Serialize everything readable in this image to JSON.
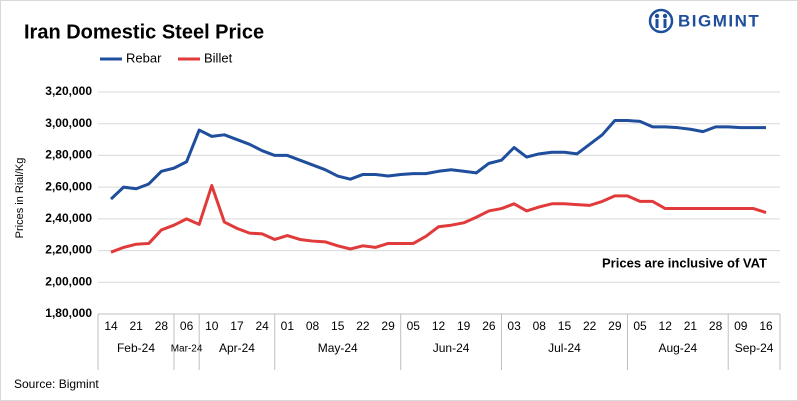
{
  "chart_data": {
    "type": "line",
    "title": "Iran Domestic Steel Price",
    "y_label": "Prices in Rial/Kg",
    "annotation": "Prices are inclusive  of VAT",
    "source": "Source: Bigmint",
    "brand": "BIGMINT",
    "categories": [
      "14",
      null,
      "21",
      null,
      "28",
      null,
      "06",
      null,
      "10",
      null,
      "17",
      null,
      "24",
      null,
      "01",
      null,
      "08",
      null,
      "15",
      null,
      "22",
      null,
      "29",
      null,
      "05",
      null,
      "12",
      null,
      "19",
      null,
      "26",
      null,
      "03",
      null,
      "08",
      null,
      "15",
      null,
      "22",
      null,
      "29",
      null,
      "05",
      null,
      "12",
      null,
      "21",
      null,
      "28",
      null,
      "09",
      null,
      "16"
    ],
    "x_groups": [
      "Feb-24",
      "Mar-24",
      "Apr-24",
      "May-24",
      "Jun-24",
      "Jul-24",
      "Aug-24",
      "Sep-24"
    ],
    "series": [
      {
        "name": "Rebar",
        "color": "#1f4e9c",
        "values": [
          252500,
          260000,
          259000,
          262000,
          270000,
          272000,
          276000,
          296000,
          292000,
          293000,
          290000,
          287000,
          283000,
          280000,
          280000,
          277000,
          274000,
          271000,
          267000,
          265000,
          268000,
          268000,
          267000,
          268000,
          268500,
          268500,
          270000,
          271000,
          270000,
          269000,
          275000,
          277000,
          285000,
          279000,
          281000,
          282000,
          282000,
          281000,
          287000,
          293000,
          302000,
          302000,
          301500,
          298000,
          298000,
          297500,
          296500,
          295000,
          298000,
          298000,
          297500,
          297500,
          297500
        ]
      },
      {
        "name": "Billet",
        "color": "#e03a3a",
        "values": [
          219000,
          222000,
          224000,
          224500,
          233000,
          236000,
          240000,
          236500,
          261000,
          238000,
          234000,
          231000,
          230500,
          227000,
          229500,
          227000,
          226000,
          225500,
          223000,
          221000,
          223000,
          222000,
          224500,
          224500,
          224500,
          229000,
          235000,
          236000,
          237500,
          241000,
          245000,
          246500,
          249500,
          245000,
          247500,
          249500,
          249500,
          249000,
          248500,
          251000,
          254500,
          254500,
          251000,
          251000,
          246500,
          246500,
          246500,
          246500,
          246500,
          246500,
          246500,
          246500,
          244000
        ]
      }
    ],
    "ylim": [
      180000,
      320000
    ],
    "yticks": [
      {
        "value": 180000,
        "label": "1,80,000"
      },
      {
        "value": 200000,
        "label": "2,00,000"
      },
      {
        "value": 220000,
        "label": "2,20,000"
      },
      {
        "value": 240000,
        "label": "2,40,000"
      },
      {
        "value": 260000,
        "label": "2,60,000"
      },
      {
        "value": 280000,
        "label": "2,80,000"
      },
      {
        "value": 300000,
        "label": "3,00,000"
      },
      {
        "value": 320000,
        "label": "3,20,000"
      }
    ],
    "grid": true
  }
}
